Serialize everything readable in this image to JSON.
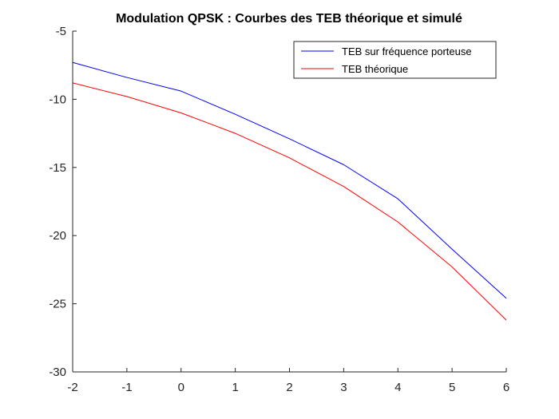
{
  "chart_data": {
    "type": "line",
    "title": "Modulation QPSK : Courbes des TEB théorique et simulé",
    "xlabel": "",
    "ylabel": "",
    "x": [
      -2,
      -1,
      0,
      1,
      2,
      3,
      4,
      5,
      6
    ],
    "xlim": [
      -2,
      6
    ],
    "ylim": [
      -30,
      -5
    ],
    "xticks": [
      -2,
      -1,
      0,
      1,
      2,
      3,
      4,
      5,
      6
    ],
    "yticks": [
      -5,
      -10,
      -15,
      -20,
      -25,
      -30
    ],
    "grid": false,
    "legend_position": "top-right",
    "series": [
      {
        "name": "TEB sur fréquence porteuse",
        "color": "#0000ff",
        "values": [
          -7.3,
          -8.4,
          -9.4,
          -11.1,
          -12.9,
          -14.8,
          -17.3,
          -21.0,
          -24.6
        ]
      },
      {
        "name": "TEB théorique",
        "color": "#ff0000",
        "values": [
          -8.8,
          -9.8,
          -11.0,
          -12.5,
          -14.3,
          -16.4,
          -19.0,
          -22.3,
          -26.2
        ]
      }
    ]
  }
}
